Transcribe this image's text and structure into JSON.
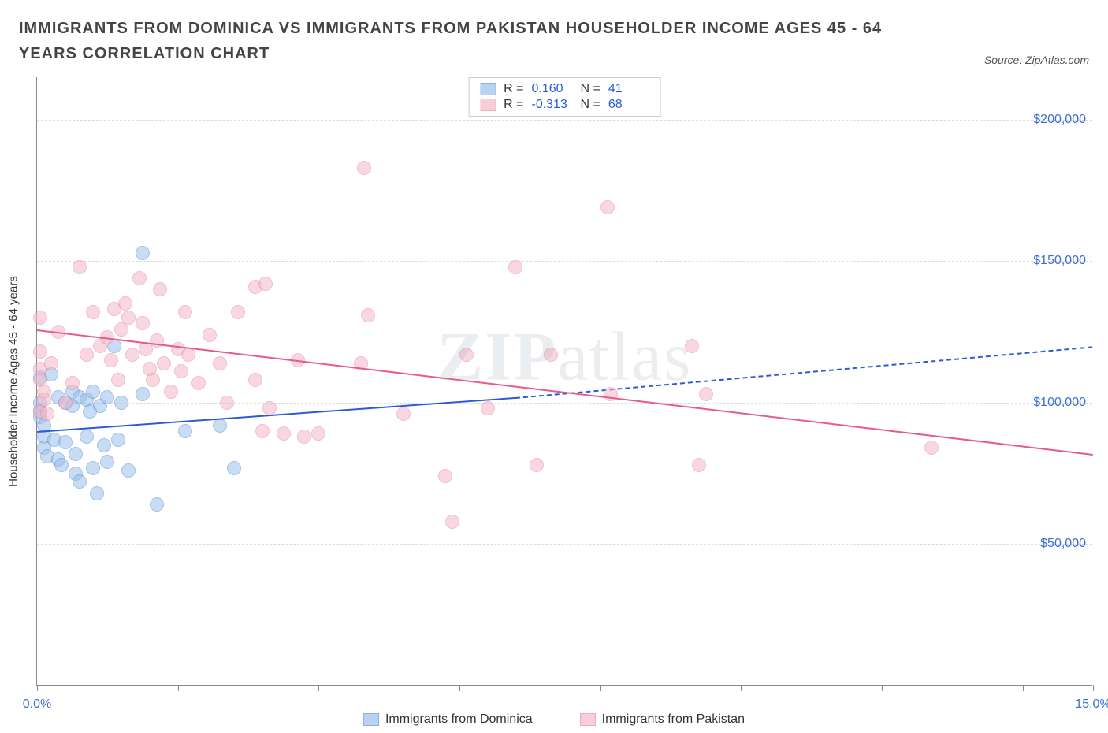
{
  "title": "IMMIGRANTS FROM DOMINICA VS IMMIGRANTS FROM PAKISTAN HOUSEHOLDER INCOME AGES 45 - 64 YEARS CORRELATION CHART",
  "source": "Source: ZipAtlas.com",
  "watermark": "ZIPatlas",
  "chart": {
    "type": "scatter",
    "background_color": "#ffffff",
    "grid_color": "#dddddd",
    "axis_color": "#888888",
    "y_axis_title": "Householder Income Ages 45 - 64 years",
    "y_axis_fontsize": 15,
    "xlim": [
      0,
      15
    ],
    "ylim": [
      0,
      215000
    ],
    "y_ticks": [
      50000,
      100000,
      150000,
      200000
    ],
    "y_tick_labels": [
      "$50,000",
      "$100,000",
      "$150,000",
      "$200,000"
    ],
    "y_tick_color": "#3b6fd6",
    "x_ticks": [
      0,
      2,
      4,
      6,
      8,
      10,
      12,
      14,
      15
    ],
    "x_tick_labels_shown": {
      "0": "0.0%",
      "15": "15.0%"
    },
    "x_tick_color": "#3b6fd6",
    "marker_radius": 9,
    "marker_border_width": 1.5,
    "marker_fill_opacity": 0.25,
    "trend_line_width": 2,
    "series": [
      {
        "id": "dominica",
        "label": "Immigrants from Dominica",
        "color_border": "#5a8fd6",
        "color_fill": "#9cc0eb",
        "trend_color": "#2b5cd6",
        "R": "0.160",
        "N": "41",
        "trend": {
          "x1": 0,
          "y1": 90000,
          "x2": 6.8,
          "y2": 102000,
          "dash_x2": 15,
          "dash_y2": 120000
        },
        "points": [
          {
            "x": 0.05,
            "y": 109000
          },
          {
            "x": 0.05,
            "y": 100000
          },
          {
            "x": 0.05,
            "y": 97000
          },
          {
            "x": 0.05,
            "y": 95000
          },
          {
            "x": 0.1,
            "y": 92000
          },
          {
            "x": 0.1,
            "y": 88000
          },
          {
            "x": 0.1,
            "y": 84000
          },
          {
            "x": 0.15,
            "y": 81000
          },
          {
            "x": 0.2,
            "y": 110000
          },
          {
            "x": 0.25,
            "y": 87000
          },
          {
            "x": 0.3,
            "y": 102000
          },
          {
            "x": 0.3,
            "y": 80000
          },
          {
            "x": 0.35,
            "y": 78000
          },
          {
            "x": 0.4,
            "y": 100000
          },
          {
            "x": 0.4,
            "y": 86000
          },
          {
            "x": 0.5,
            "y": 104000
          },
          {
            "x": 0.5,
            "y": 99000
          },
          {
            "x": 0.55,
            "y": 82000
          },
          {
            "x": 0.55,
            "y": 75000
          },
          {
            "x": 0.6,
            "y": 102000
          },
          {
            "x": 0.6,
            "y": 72000
          },
          {
            "x": 0.7,
            "y": 101000
          },
          {
            "x": 0.7,
            "y": 88000
          },
          {
            "x": 0.75,
            "y": 97000
          },
          {
            "x": 0.8,
            "y": 104000
          },
          {
            "x": 0.8,
            "y": 77000
          },
          {
            "x": 0.85,
            "y": 68000
          },
          {
            "x": 0.9,
            "y": 99000
          },
          {
            "x": 0.95,
            "y": 85000
          },
          {
            "x": 1.0,
            "y": 102000
          },
          {
            "x": 1.0,
            "y": 79000
          },
          {
            "x": 1.1,
            "y": 120000
          },
          {
            "x": 1.15,
            "y": 87000
          },
          {
            "x": 1.2,
            "y": 100000
          },
          {
            "x": 1.3,
            "y": 76000
          },
          {
            "x": 1.5,
            "y": 103000
          },
          {
            "x": 1.5,
            "y": 153000
          },
          {
            "x": 1.7,
            "y": 64000
          },
          {
            "x": 2.1,
            "y": 90000
          },
          {
            "x": 2.6,
            "y": 92000
          },
          {
            "x": 2.8,
            "y": 77000
          }
        ]
      },
      {
        "id": "pakistan",
        "label": "Immigrants from Pakistan",
        "color_border": "#e68aa4",
        "color_fill": "#f5b8c8",
        "trend_color": "#e85a8a",
        "R": "-0.313",
        "N": "68",
        "trend": {
          "x1": 0,
          "y1": 126000,
          "x2": 15,
          "y2": 82000
        },
        "points": [
          {
            "x": 0.05,
            "y": 130000
          },
          {
            "x": 0.05,
            "y": 118000
          },
          {
            "x": 0.05,
            "y": 112000
          },
          {
            "x": 0.05,
            "y": 108000
          },
          {
            "x": 0.05,
            "y": 97000
          },
          {
            "x": 0.1,
            "y": 104000
          },
          {
            "x": 0.1,
            "y": 101000
          },
          {
            "x": 0.15,
            "y": 96000
          },
          {
            "x": 0.2,
            "y": 114000
          },
          {
            "x": 0.3,
            "y": 125000
          },
          {
            "x": 0.5,
            "y": 107000
          },
          {
            "x": 0.6,
            "y": 148000
          },
          {
            "x": 0.7,
            "y": 117000
          },
          {
            "x": 0.8,
            "y": 132000
          },
          {
            "x": 0.9,
            "y": 120000
          },
          {
            "x": 1.0,
            "y": 123000
          },
          {
            "x": 1.05,
            "y": 115000
          },
          {
            "x": 1.1,
            "y": 133000
          },
          {
            "x": 1.15,
            "y": 108000
          },
          {
            "x": 1.2,
            "y": 126000
          },
          {
            "x": 1.25,
            "y": 135000
          },
          {
            "x": 1.3,
            "y": 130000
          },
          {
            "x": 1.35,
            "y": 117000
          },
          {
            "x": 1.45,
            "y": 144000
          },
          {
            "x": 1.5,
            "y": 128000
          },
          {
            "x": 1.55,
            "y": 119000
          },
          {
            "x": 1.6,
            "y": 112000
          },
          {
            "x": 1.65,
            "y": 108000
          },
          {
            "x": 1.7,
            "y": 122000
          },
          {
            "x": 1.75,
            "y": 140000
          },
          {
            "x": 1.8,
            "y": 114000
          },
          {
            "x": 1.9,
            "y": 104000
          },
          {
            "x": 2.0,
            "y": 119000
          },
          {
            "x": 2.05,
            "y": 111000
          },
          {
            "x": 2.1,
            "y": 132000
          },
          {
            "x": 2.15,
            "y": 117000
          },
          {
            "x": 2.3,
            "y": 107000
          },
          {
            "x": 2.45,
            "y": 124000
          },
          {
            "x": 2.6,
            "y": 114000
          },
          {
            "x": 2.7,
            "y": 100000
          },
          {
            "x": 2.85,
            "y": 132000
          },
          {
            "x": 3.1,
            "y": 141000
          },
          {
            "x": 3.1,
            "y": 108000
          },
          {
            "x": 3.2,
            "y": 90000
          },
          {
            "x": 3.25,
            "y": 142000
          },
          {
            "x": 3.3,
            "y": 98000
          },
          {
            "x": 3.5,
            "y": 89000
          },
          {
            "x": 3.7,
            "y": 115000
          },
          {
            "x": 3.8,
            "y": 88000
          },
          {
            "x": 4.0,
            "y": 89000
          },
          {
            "x": 4.6,
            "y": 114000
          },
          {
            "x": 4.65,
            "y": 183000
          },
          {
            "x": 4.7,
            "y": 131000
          },
          {
            "x": 5.2,
            "y": 96000
          },
          {
            "x": 5.8,
            "y": 74000
          },
          {
            "x": 5.9,
            "y": 58000
          },
          {
            "x": 6.1,
            "y": 117000
          },
          {
            "x": 6.4,
            "y": 98000
          },
          {
            "x": 6.8,
            "y": 148000
          },
          {
            "x": 7.1,
            "y": 78000
          },
          {
            "x": 7.3,
            "y": 117000
          },
          {
            "x": 8.1,
            "y": 169000
          },
          {
            "x": 8.15,
            "y": 103000
          },
          {
            "x": 9.3,
            "y": 120000
          },
          {
            "x": 9.4,
            "y": 78000
          },
          {
            "x": 9.5,
            "y": 103000
          },
          {
            "x": 12.7,
            "y": 84000
          },
          {
            "x": 0.4,
            "y": 100000
          }
        ]
      }
    ]
  }
}
